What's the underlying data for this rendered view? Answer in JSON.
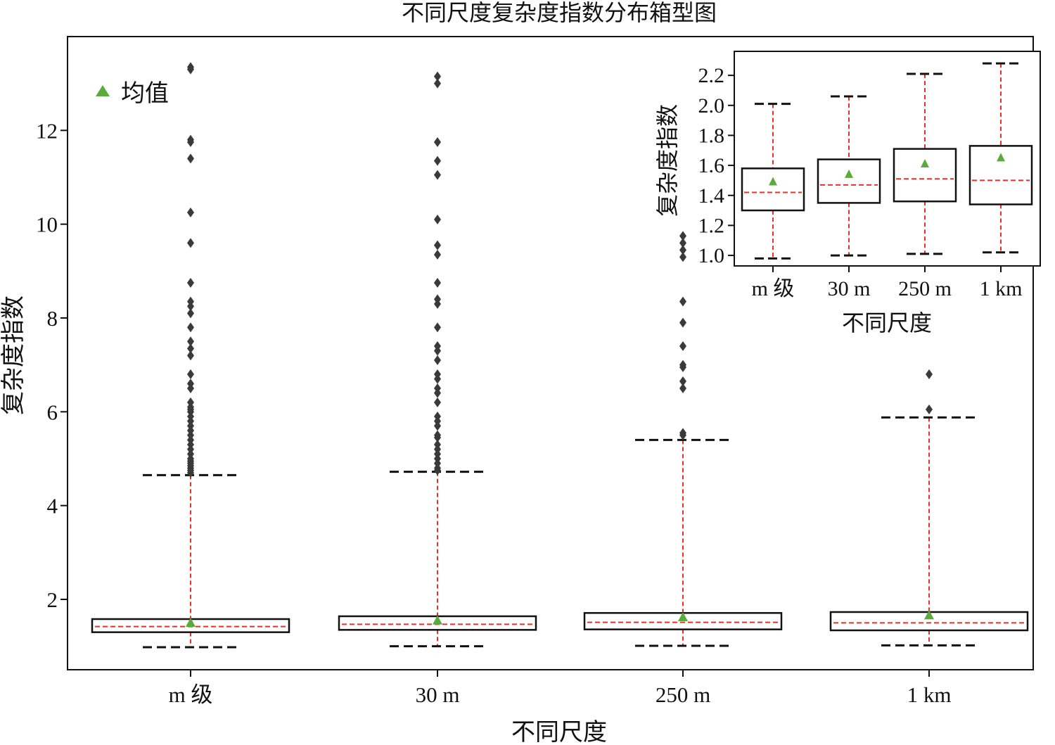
{
  "chart_data": {
    "type": "boxplot",
    "title": "不同尺度复杂度指数分布箱型图",
    "xlabel": "不同尺度",
    "ylabel": "复杂度指数",
    "categories": [
      "m 级",
      "30 m",
      "250 m",
      "1 km"
    ],
    "ylim": [
      0.5,
      14.0
    ],
    "yticks": [
      2,
      4,
      6,
      8,
      10,
      12
    ],
    "grid": false,
    "legend": {
      "position": "top-left",
      "entries": [
        {
          "label": "均值",
          "marker": "triangle",
          "color": "#5aaa3c"
        }
      ]
    },
    "colors": {
      "median": "#e8302a",
      "whisker": "#e8302a",
      "caps": "#111111",
      "box": "#111111",
      "mean": "#5aaa3c",
      "outlier": "#3a3a3a"
    },
    "boxes": [
      {
        "category": "m 级",
        "whisker_low": 0.98,
        "q1": 1.3,
        "median": 1.42,
        "q3": 1.58,
        "whisker_high": 4.65,
        "mean": 1.49,
        "outliers": [
          4.7,
          4.75,
          4.8,
          4.85,
          4.9,
          4.95,
          5.0,
          5.1,
          5.2,
          5.3,
          5.4,
          5.5,
          5.6,
          5.7,
          5.8,
          5.9,
          6.0,
          6.05,
          6.1,
          6.2,
          6.5,
          6.6,
          6.8,
          7.2,
          7.35,
          7.5,
          7.8,
          8.1,
          8.25,
          8.35,
          8.75,
          9.6,
          10.25,
          11.4,
          11.75,
          11.8,
          13.3,
          13.35
        ]
      },
      {
        "category": "30 m",
        "whisker_low": 1.0,
        "q1": 1.35,
        "median": 1.47,
        "q3": 1.64,
        "whisker_high": 4.72,
        "mean": 1.54,
        "outliers": [
          4.75,
          4.8,
          4.9,
          5.0,
          5.1,
          5.2,
          5.3,
          5.45,
          5.5,
          5.7,
          5.8,
          5.9,
          6.2,
          6.4,
          6.5,
          6.7,
          6.8,
          7.1,
          7.3,
          7.4,
          7.8,
          8.3,
          8.4,
          8.75,
          9.35,
          9.55,
          10.1,
          11.05,
          11.35,
          11.75,
          13.0,
          13.15
        ]
      },
      {
        "category": "250 m",
        "whisker_low": 1.01,
        "q1": 1.36,
        "median": 1.51,
        "q3": 1.71,
        "whisker_high": 5.4,
        "mean": 1.61,
        "outliers": [
          5.5,
          5.55,
          6.5,
          6.65,
          6.95,
          7.0,
          7.4,
          7.9,
          8.35,
          9.3,
          9.45,
          9.6,
          9.75
        ]
      },
      {
        "category": "1 km",
        "whisker_low": 1.02,
        "q1": 1.34,
        "median": 1.5,
        "q3": 1.73,
        "whisker_high": 5.88,
        "mean": 1.65,
        "outliers": [
          6.05,
          6.8
        ]
      }
    ],
    "inset": {
      "ylabel": "复杂度指数",
      "xlabel": "不同尺度",
      "ylim": [
        0.93,
        2.36
      ],
      "yticks": [
        "1.0",
        "1.2",
        "1.4",
        "1.6",
        "1.8",
        "2.0",
        "2.2"
      ],
      "boxes": [
        {
          "category": "m 级",
          "whisker_low": 0.98,
          "q1": 1.3,
          "median": 1.42,
          "q3": 1.58,
          "whisker_high": 2.01,
          "mean": 1.49
        },
        {
          "category": "30 m",
          "whisker_low": 1.0,
          "q1": 1.35,
          "median": 1.47,
          "q3": 1.64,
          "whisker_high": 2.06,
          "mean": 1.54
        },
        {
          "category": "250 m",
          "whisker_low": 1.01,
          "q1": 1.36,
          "median": 1.51,
          "q3": 1.71,
          "whisker_high": 2.21,
          "mean": 1.61
        },
        {
          "category": "1 km",
          "whisker_low": 1.02,
          "q1": 1.34,
          "median": 1.5,
          "q3": 1.73,
          "whisker_high": 2.28,
          "mean": 1.65
        }
      ]
    }
  }
}
